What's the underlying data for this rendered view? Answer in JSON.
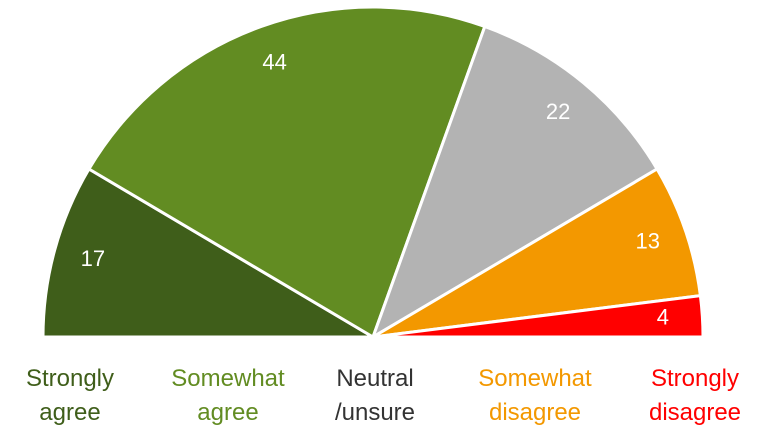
{
  "chart_data": {
    "type": "half_pie",
    "categories": [
      "Strongly agree",
      "Somewhat agree",
      "Neutral /unsure",
      "Somewhat disagree",
      "Strongly disagree"
    ],
    "values": [
      17,
      44,
      22,
      13,
      4
    ],
    "colors": [
      "#3f5e1a",
      "#628c22",
      "#b3b3b3",
      "#f39800",
      "#ff0000"
    ],
    "label_colors": [
      "#3f5e1a",
      "#628c22",
      "#333333",
      "#f39800",
      "#ff0000"
    ]
  }
}
